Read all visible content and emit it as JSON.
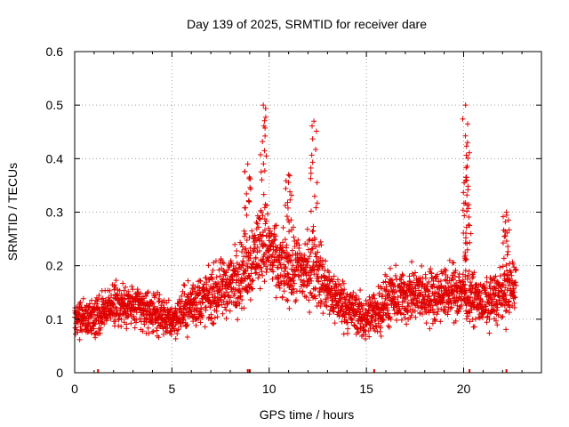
{
  "chart_data": {
    "type": "scatter",
    "title": "Day 139 of 2025, SRMTID for receiver dare",
    "xlabel": "GPS time / hours",
    "ylabel": "SRMTID / TECUs",
    "xlim": [
      0,
      24
    ],
    "ylim": [
      0,
      0.6
    ],
    "x_ticks": [
      0,
      5,
      10,
      15,
      20
    ],
    "y_ticks": [
      0,
      0.1,
      0.2,
      0.3,
      0.4,
      0.5,
      0.6
    ],
    "x_tick_labels": [
      "0",
      "5",
      "10",
      "15",
      "20"
    ],
    "y_tick_labels": [
      "0",
      "0.1",
      "0.2",
      "0.3",
      "0.4",
      "0.5",
      "0.6"
    ],
    "grid": true,
    "marker": "plus",
    "series_color": "#e00000",
    "baseline_markers_x": [
      1.2,
      8.9,
      9.0,
      15.4,
      20.3,
      22.2
    ],
    "peaks": [
      {
        "x": 8.9,
        "y": 0.39
      },
      {
        "x": 9.7,
        "y": 0.5
      },
      {
        "x": 11.0,
        "y": 0.37
      },
      {
        "x": 12.3,
        "y": 0.47
      },
      {
        "x": 20.1,
        "y": 0.5
      },
      {
        "x": 20.2,
        "y": 0.43
      },
      {
        "x": 20.15,
        "y": 0.365
      },
      {
        "x": 22.2,
        "y": 0.3
      }
    ],
    "envelope": [
      {
        "x": 0.0,
        "lo": 0.05,
        "hi": 0.14
      },
      {
        "x": 1.0,
        "lo": 0.05,
        "hi": 0.15
      },
      {
        "x": 2.0,
        "lo": 0.07,
        "hi": 0.18
      },
      {
        "x": 3.0,
        "lo": 0.06,
        "hi": 0.18
      },
      {
        "x": 4.0,
        "lo": 0.06,
        "hi": 0.16
      },
      {
        "x": 5.0,
        "lo": 0.05,
        "hi": 0.14
      },
      {
        "x": 6.0,
        "lo": 0.06,
        "hi": 0.19
      },
      {
        "x": 7.0,
        "lo": 0.07,
        "hi": 0.21
      },
      {
        "x": 8.0,
        "lo": 0.08,
        "hi": 0.24
      },
      {
        "x": 9.0,
        "lo": 0.1,
        "hi": 0.3
      },
      {
        "x": 9.7,
        "lo": 0.14,
        "hi": 0.36
      },
      {
        "x": 10.5,
        "lo": 0.11,
        "hi": 0.27
      },
      {
        "x": 11.0,
        "lo": 0.1,
        "hi": 0.28
      },
      {
        "x": 12.0,
        "lo": 0.09,
        "hi": 0.28
      },
      {
        "x": 12.3,
        "lo": 0.1,
        "hi": 0.3
      },
      {
        "x": 13.0,
        "lo": 0.08,
        "hi": 0.22
      },
      {
        "x": 14.0,
        "lo": 0.06,
        "hi": 0.18
      },
      {
        "x": 15.0,
        "lo": 0.04,
        "hi": 0.15
      },
      {
        "x": 16.0,
        "lo": 0.06,
        "hi": 0.2
      },
      {
        "x": 17.0,
        "lo": 0.07,
        "hi": 0.21
      },
      {
        "x": 18.0,
        "lo": 0.07,
        "hi": 0.21
      },
      {
        "x": 19.0,
        "lo": 0.08,
        "hi": 0.21
      },
      {
        "x": 20.0,
        "lo": 0.08,
        "hi": 0.22
      },
      {
        "x": 21.0,
        "lo": 0.07,
        "hi": 0.18
      },
      {
        "x": 22.0,
        "lo": 0.07,
        "hi": 0.22
      },
      {
        "x": 22.7,
        "lo": 0.09,
        "hi": 0.24
      }
    ]
  }
}
